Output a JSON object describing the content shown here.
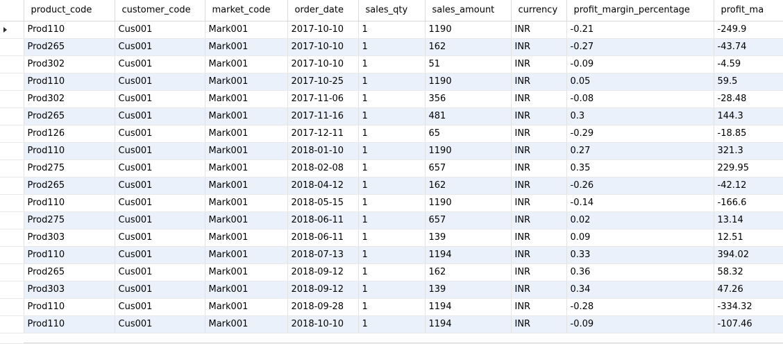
{
  "grid": {
    "columns": [
      "product_code",
      "customer_code",
      "market_code",
      "order_date",
      "sales_qty",
      "sales_amount",
      "currency",
      "profit_margin_percentage",
      "profit_ma"
    ],
    "selected_row": 0,
    "rows": [
      [
        "Prod110",
        "Cus001",
        "Mark001",
        "2017-10-10",
        "1",
        "1190",
        "INR",
        "-0.21",
        "-249.9"
      ],
      [
        "Prod265",
        "Cus001",
        "Mark001",
        "2017-10-10",
        "1",
        "162",
        "INR",
        "-0.27",
        "-43.74"
      ],
      [
        "Prod302",
        "Cus001",
        "Mark001",
        "2017-10-10",
        "1",
        "51",
        "INR",
        "-0.09",
        "-4.59"
      ],
      [
        "Prod110",
        "Cus001",
        "Mark001",
        "2017-10-25",
        "1",
        "1190",
        "INR",
        "0.05",
        "59.5"
      ],
      [
        "Prod302",
        "Cus001",
        "Mark001",
        "2017-11-06",
        "1",
        "356",
        "INR",
        "-0.08",
        "-28.48"
      ],
      [
        "Prod265",
        "Cus001",
        "Mark001",
        "2017-11-16",
        "1",
        "481",
        "INR",
        "0.3",
        "144.3"
      ],
      [
        "Prod126",
        "Cus001",
        "Mark001",
        "2017-12-11",
        "1",
        "65",
        "INR",
        "-0.29",
        "-18.85"
      ],
      [
        "Prod110",
        "Cus001",
        "Mark001",
        "2018-01-10",
        "1",
        "1190",
        "INR",
        "0.27",
        "321.3"
      ],
      [
        "Prod275",
        "Cus001",
        "Mark001",
        "2018-02-08",
        "1",
        "657",
        "INR",
        "0.35",
        "229.95"
      ],
      [
        "Prod265",
        "Cus001",
        "Mark001",
        "2018-04-12",
        "1",
        "162",
        "INR",
        "-0.26",
        "-42.12"
      ],
      [
        "Prod110",
        "Cus001",
        "Mark001",
        "2018-05-15",
        "1",
        "1190",
        "INR",
        "-0.14",
        "-166.6"
      ],
      [
        "Prod275",
        "Cus001",
        "Mark001",
        "2018-06-11",
        "1",
        "657",
        "INR",
        "0.02",
        "13.14"
      ],
      [
        "Prod303",
        "Cus001",
        "Mark001",
        "2018-06-11",
        "1",
        "139",
        "INR",
        "0.09",
        "12.51"
      ],
      [
        "Prod110",
        "Cus001",
        "Mark001",
        "2018-07-13",
        "1",
        "1194",
        "INR",
        "0.33",
        "394.02"
      ],
      [
        "Prod265",
        "Cus001",
        "Mark001",
        "2018-09-12",
        "1",
        "162",
        "INR",
        "0.36",
        "58.32"
      ],
      [
        "Prod303",
        "Cus001",
        "Mark001",
        "2018-09-12",
        "1",
        "139",
        "INR",
        "0.34",
        "47.26"
      ],
      [
        "Prod110",
        "Cus001",
        "Mark001",
        "2018-09-28",
        "1",
        "1194",
        "INR",
        "-0.28",
        "-334.32"
      ],
      [
        "Prod110",
        "Cus001",
        "Mark001",
        "2018-10-10",
        "1",
        "1194",
        "INR",
        "-0.09",
        "-107.46"
      ]
    ]
  },
  "icons": {
    "row_pointer": "current-row-arrow-icon"
  },
  "colors": {
    "row_alt": "#eaf1fb",
    "gridline": "#e2e2e2"
  }
}
